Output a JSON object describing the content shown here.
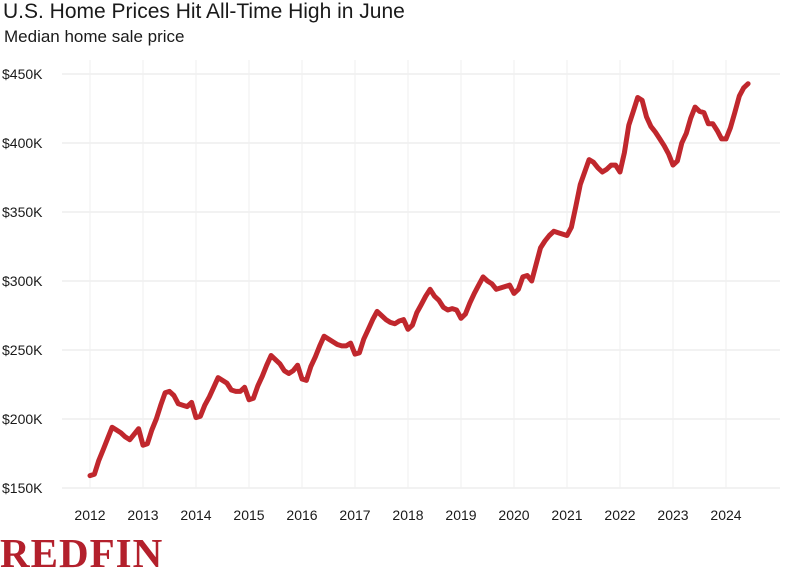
{
  "chart_data": {
    "type": "line",
    "title": "U.S. Home Prices Hit All-Time High in June",
    "subtitle": "Median home sale price",
    "xlabel": "",
    "ylabel": "",
    "ylim": [
      150000,
      450000
    ],
    "xlim": [
      "2012-01",
      "2024-06"
    ],
    "y_ticks": [
      "$150K",
      "$200K",
      "$250K",
      "$300K",
      "$350K",
      "$400K",
      "$450K"
    ],
    "x_ticks": [
      "2012",
      "2013",
      "2014",
      "2015",
      "2016",
      "2017",
      "2018",
      "2019",
      "2020",
      "2021",
      "2022",
      "2023",
      "2024"
    ],
    "grid": true,
    "line_color": "#c0272d",
    "series": [
      {
        "name": "",
        "points": [
          [
            "2012-01",
            159000
          ],
          [
            "2012-02",
            160000
          ],
          [
            "2012-03",
            170000
          ],
          [
            "2012-04",
            178000
          ],
          [
            "2012-05",
            186000
          ],
          [
            "2012-06",
            194000
          ],
          [
            "2012-07",
            192000
          ],
          [
            "2012-08",
            190000
          ],
          [
            "2012-09",
            187000
          ],
          [
            "2012-10",
            185000
          ],
          [
            "2012-11",
            189000
          ],
          [
            "2012-12",
            193000
          ],
          [
            "2013-01",
            181000
          ],
          [
            "2013-02",
            182000
          ],
          [
            "2013-03",
            192000
          ],
          [
            "2013-04",
            200000
          ],
          [
            "2013-05",
            210000
          ],
          [
            "2013-06",
            219000
          ],
          [
            "2013-07",
            220000
          ],
          [
            "2013-08",
            217000
          ],
          [
            "2013-09",
            211000
          ],
          [
            "2013-10",
            210000
          ],
          [
            "2013-11",
            209000
          ],
          [
            "2013-12",
            212000
          ],
          [
            "2014-01",
            201000
          ],
          [
            "2014-02",
            202000
          ],
          [
            "2014-03",
            210000
          ],
          [
            "2014-04",
            216000
          ],
          [
            "2014-05",
            223000
          ],
          [
            "2014-06",
            230000
          ],
          [
            "2014-07",
            228000
          ],
          [
            "2014-08",
            226000
          ],
          [
            "2014-09",
            221000
          ],
          [
            "2014-10",
            220000
          ],
          [
            "2014-11",
            220000
          ],
          [
            "2014-12",
            223000
          ],
          [
            "2015-01",
            214000
          ],
          [
            "2015-02",
            215000
          ],
          [
            "2015-03",
            224000
          ],
          [
            "2015-04",
            231000
          ],
          [
            "2015-05",
            239000
          ],
          [
            "2015-06",
            246000
          ],
          [
            "2015-07",
            243000
          ],
          [
            "2015-08",
            240000
          ],
          [
            "2015-09",
            235000
          ],
          [
            "2015-10",
            233000
          ],
          [
            "2015-11",
            235000
          ],
          [
            "2015-12",
            239000
          ],
          [
            "2016-01",
            229000
          ],
          [
            "2016-02",
            228000
          ],
          [
            "2016-03",
            238000
          ],
          [
            "2016-04",
            245000
          ],
          [
            "2016-05",
            253000
          ],
          [
            "2016-06",
            260000
          ],
          [
            "2016-07",
            258000
          ],
          [
            "2016-08",
            256000
          ],
          [
            "2016-09",
            254000
          ],
          [
            "2016-10",
            253000
          ],
          [
            "2016-11",
            253000
          ],
          [
            "2016-12",
            255000
          ],
          [
            "2017-01",
            247000
          ],
          [
            "2017-02",
            248000
          ],
          [
            "2017-03",
            258000
          ],
          [
            "2017-04",
            265000
          ],
          [
            "2017-05",
            272000
          ],
          [
            "2017-06",
            278000
          ],
          [
            "2017-07",
            275000
          ],
          [
            "2017-08",
            272000
          ],
          [
            "2017-09",
            270000
          ],
          [
            "2017-10",
            269000
          ],
          [
            "2017-11",
            271000
          ],
          [
            "2017-12",
            272000
          ],
          [
            "2018-01",
            265000
          ],
          [
            "2018-02",
            268000
          ],
          [
            "2018-03",
            277000
          ],
          [
            "2018-04",
            283000
          ],
          [
            "2018-05",
            289000
          ],
          [
            "2018-06",
            294000
          ],
          [
            "2018-07",
            289000
          ],
          [
            "2018-08",
            286000
          ],
          [
            "2018-09",
            281000
          ],
          [
            "2018-10",
            279000
          ],
          [
            "2018-11",
            280000
          ],
          [
            "2018-12",
            279000
          ],
          [
            "2019-01",
            273000
          ],
          [
            "2019-02",
            276000
          ],
          [
            "2019-03",
            284000
          ],
          [
            "2019-04",
            291000
          ],
          [
            "2019-05",
            297000
          ],
          [
            "2019-06",
            303000
          ],
          [
            "2019-07",
            300000
          ],
          [
            "2019-08",
            298000
          ],
          [
            "2019-09",
            294000
          ],
          [
            "2019-10",
            295000
          ],
          [
            "2019-11",
            296000
          ],
          [
            "2019-12",
            297000
          ],
          [
            "2020-01",
            291000
          ],
          [
            "2020-02",
            294000
          ],
          [
            "2020-03",
            303000
          ],
          [
            "2020-04",
            304000
          ],
          [
            "2020-05",
            300000
          ],
          [
            "2020-06",
            312000
          ],
          [
            "2020-07",
            324000
          ],
          [
            "2020-08",
            329000
          ],
          [
            "2020-09",
            333000
          ],
          [
            "2020-10",
            336000
          ],
          [
            "2020-11",
            335000
          ],
          [
            "2020-12",
            334000
          ],
          [
            "2021-01",
            333000
          ],
          [
            "2021-02",
            339000
          ],
          [
            "2021-03",
            354000
          ],
          [
            "2021-04",
            370000
          ],
          [
            "2021-05",
            379000
          ],
          [
            "2021-06",
            388000
          ],
          [
            "2021-07",
            386000
          ],
          [
            "2021-08",
            382000
          ],
          [
            "2021-09",
            379000
          ],
          [
            "2021-10",
            381000
          ],
          [
            "2021-11",
            384000
          ],
          [
            "2021-12",
            384000
          ],
          [
            "2022-01",
            379000
          ],
          [
            "2022-02",
            393000
          ],
          [
            "2022-03",
            413000
          ],
          [
            "2022-04",
            423000
          ],
          [
            "2022-05",
            433000
          ],
          [
            "2022-06",
            431000
          ],
          [
            "2022-07",
            419000
          ],
          [
            "2022-08",
            412000
          ],
          [
            "2022-09",
            408000
          ],
          [
            "2022-10",
            403000
          ],
          [
            "2022-11",
            398000
          ],
          [
            "2022-12",
            392000
          ],
          [
            "2023-01",
            384000
          ],
          [
            "2023-02",
            387000
          ],
          [
            "2023-03",
            400000
          ],
          [
            "2023-04",
            407000
          ],
          [
            "2023-05",
            418000
          ],
          [
            "2023-06",
            426000
          ],
          [
            "2023-07",
            423000
          ],
          [
            "2023-08",
            422000
          ],
          [
            "2023-09",
            414000
          ],
          [
            "2023-10",
            414000
          ],
          [
            "2023-11",
            409000
          ],
          [
            "2023-12",
            403000
          ],
          [
            "2024-01",
            403000
          ],
          [
            "2024-02",
            411000
          ],
          [
            "2024-03",
            422000
          ],
          [
            "2024-04",
            434000
          ],
          [
            "2024-05",
            440000
          ],
          [
            "2024-06",
            443000
          ]
        ]
      }
    ]
  },
  "brand": {
    "logo_text": "REDFIN",
    "logo_color": "#b3202c"
  }
}
